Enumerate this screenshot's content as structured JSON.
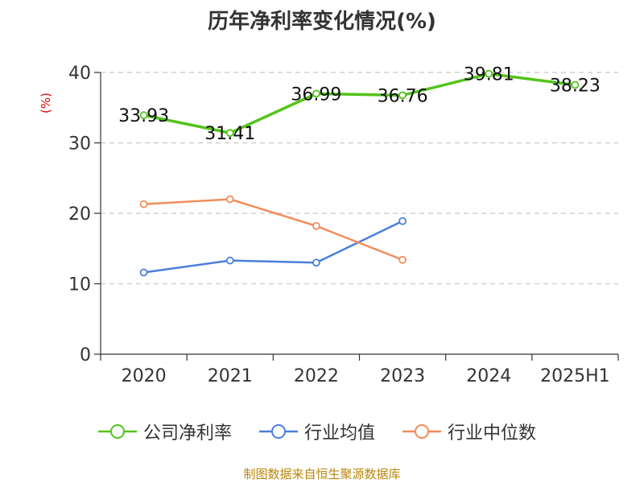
{
  "chart_data": {
    "type": "line",
    "title": "历年净利率变化情况(%)",
    "ylabel": "(%)",
    "categories": [
      "2020",
      "2021",
      "2022",
      "2023",
      "2024",
      "2025H1"
    ],
    "ylim": [
      0,
      40
    ],
    "yticks": [
      0,
      10,
      20,
      30,
      40
    ],
    "grid": true,
    "legend_position": "bottom",
    "series": [
      {
        "name": "公司净利率",
        "color": "#52c41a",
        "values": [
          33.93,
          31.41,
          36.99,
          36.76,
          39.81,
          38.23
        ],
        "labels": [
          "33.93",
          "31.41",
          "36.99",
          "36.76",
          "39.81",
          "38.23"
        ]
      },
      {
        "name": "行业均值",
        "color": "#4a7fdb",
        "values": [
          11.6,
          13.3,
          13.0,
          18.9,
          null,
          null
        ]
      },
      {
        "name": "行业中位数",
        "color": "#f28c5a",
        "values": [
          21.3,
          22.0,
          18.2,
          13.4,
          null,
          null
        ]
      }
    ]
  },
  "source": "制图数据来自恒生聚源数据库"
}
